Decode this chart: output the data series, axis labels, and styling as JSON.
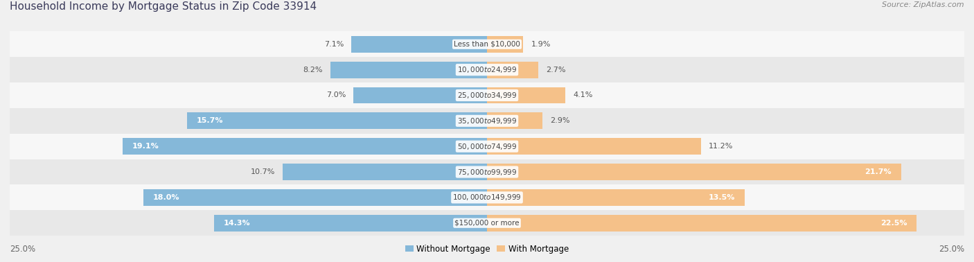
{
  "title": "Household Income by Mortgage Status in Zip Code 33914",
  "source": "Source: ZipAtlas.com",
  "categories": [
    "Less than $10,000",
    "$10,000 to $24,999",
    "$25,000 to $34,999",
    "$35,000 to $49,999",
    "$50,000 to $74,999",
    "$75,000 to $99,999",
    "$100,000 to $149,999",
    "$150,000 or more"
  ],
  "without_mortgage": [
    7.1,
    8.2,
    7.0,
    15.7,
    19.1,
    10.7,
    18.0,
    14.3
  ],
  "with_mortgage": [
    1.9,
    2.7,
    4.1,
    2.9,
    11.2,
    21.7,
    13.5,
    22.5
  ],
  "color_without": "#85b8d9",
  "color_with": "#f5c189",
  "bg_color": "#f0f0f0",
  "row_bg_color_1": "#f7f7f7",
  "row_bg_color_2": "#e8e8e8",
  "max_val": 25.0,
  "axis_label_left": "25.0%",
  "axis_label_right": "25.0%",
  "title_fontsize": 11,
  "label_fontsize": 8,
  "category_fontsize": 7.5,
  "source_fontsize": 8
}
